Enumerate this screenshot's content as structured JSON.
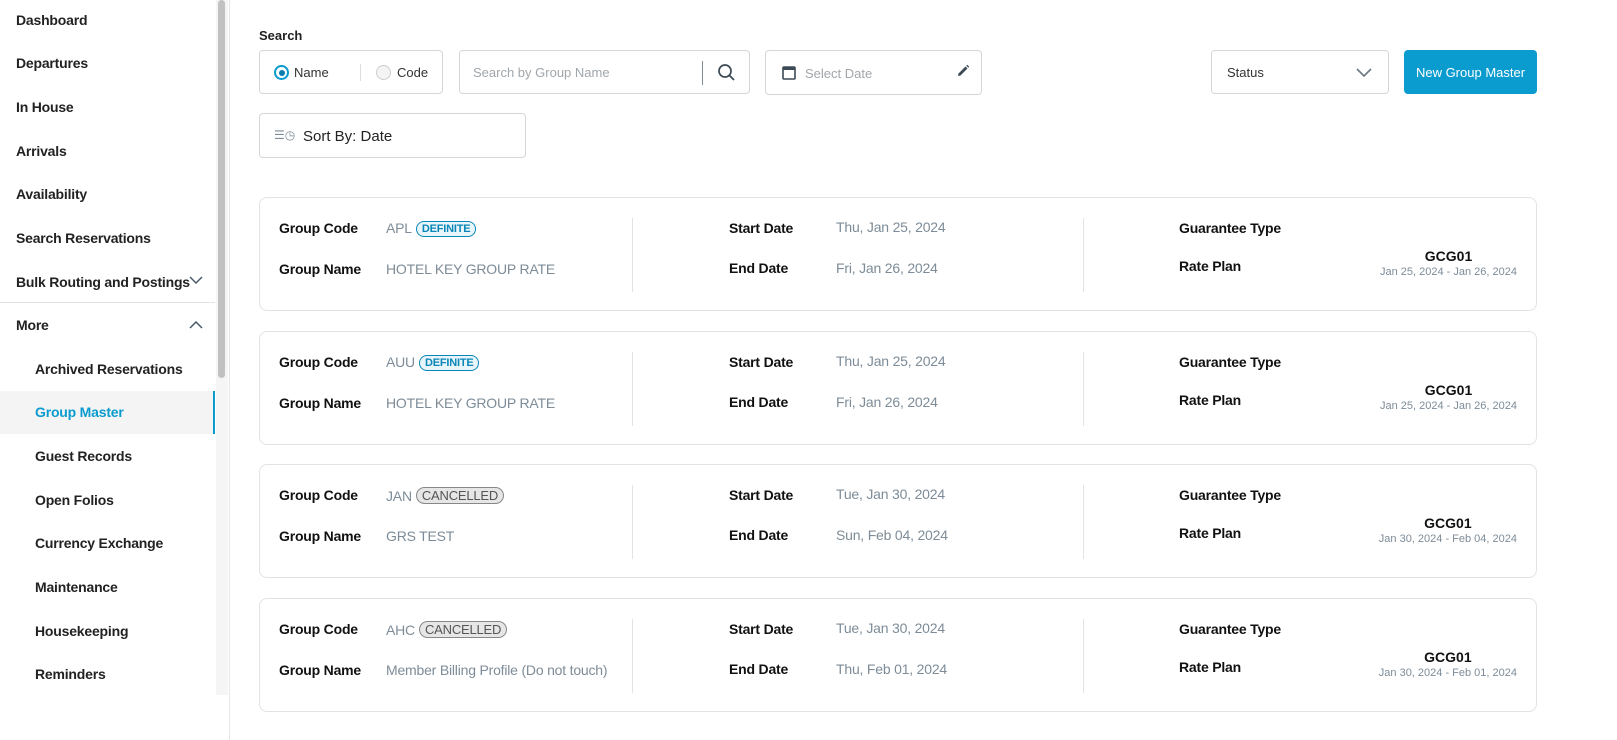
{
  "sidebar": {
    "items": [
      {
        "label": "Dashboard"
      },
      {
        "label": "Departures"
      },
      {
        "label": "In House"
      },
      {
        "label": "Arrivals"
      },
      {
        "label": "Availability"
      },
      {
        "label": "Search Reservations"
      },
      {
        "label": "Bulk Routing and Postings",
        "chevron": "down"
      },
      {
        "label": "More",
        "chevron": "up"
      }
    ],
    "sub_items": [
      {
        "label": "Archived Reservations"
      },
      {
        "label": "Group Master",
        "active": true
      },
      {
        "label": "Guest Records"
      },
      {
        "label": "Open Folios"
      },
      {
        "label": "Currency Exchange"
      },
      {
        "label": "Maintenance"
      },
      {
        "label": "Housekeeping"
      },
      {
        "label": "Reminders"
      }
    ]
  },
  "search": {
    "label": "Search",
    "radio_name": "Name",
    "radio_code": "Code",
    "selected": "Name",
    "input_placeholder": "Search by Group Name",
    "date_placeholder": "Select Date"
  },
  "status_select": {
    "value": "Status"
  },
  "new_button": "New Group Master",
  "sort": {
    "label": "Sort By: Date"
  },
  "labels": {
    "group_code": "Group Code",
    "group_name": "Group Name",
    "start_date": "Start Date",
    "end_date": "End Date",
    "guarantee_type": "Guarantee Type",
    "rate_plan": "Rate Plan"
  },
  "colors": {
    "accent": "#0a9bcf"
  },
  "groups": [
    {
      "code": "APL",
      "status": "DEFINITE",
      "name": "HOTEL KEY GROUP RATE",
      "start": "Thu, Jan 25, 2024",
      "end": "Fri, Jan 26, 2024",
      "rate_plan": "GCG01",
      "rate_dates": "Jan 25, 2024 - Jan 26, 2024"
    },
    {
      "code": "AUU",
      "status": "DEFINITE",
      "name": "HOTEL KEY GROUP RATE",
      "start": "Thu, Jan 25, 2024",
      "end": "Fri, Jan 26, 2024",
      "rate_plan": "GCG01",
      "rate_dates": "Jan 25, 2024 - Jan 26, 2024"
    },
    {
      "code": "JAN",
      "status": "CANCELLED",
      "name": "GRS TEST",
      "start": "Tue, Jan 30, 2024",
      "end": "Sun, Feb 04, 2024",
      "rate_plan": "GCG01",
      "rate_dates": "Jan 30, 2024 - Feb 04, 2024"
    },
    {
      "code": "AHC",
      "status": "CANCELLED",
      "name": "Member Billing Profile (Do not touch)",
      "start": "Tue, Jan 30, 2024",
      "end": "Thu, Feb 01, 2024",
      "rate_plan": "GCG01",
      "rate_dates": "Jan 30, 2024 - Feb 01, 2024"
    }
  ]
}
